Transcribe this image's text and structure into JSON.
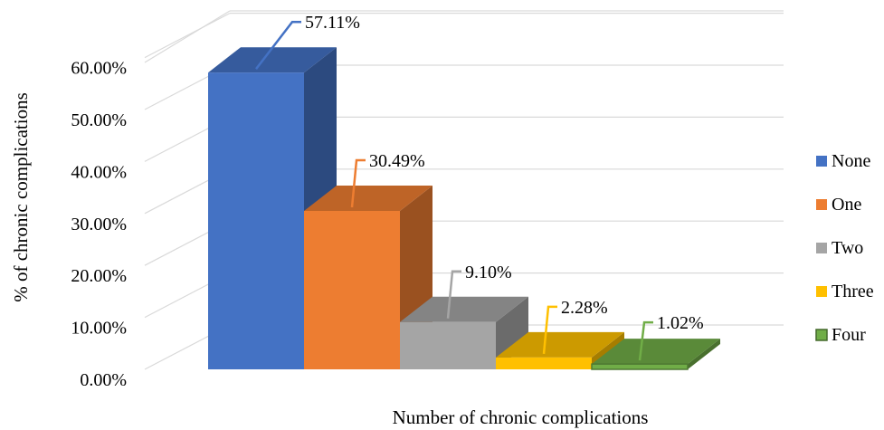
{
  "chart_data": {
    "type": "bar",
    "xlabel": "Number of  chronic complications",
    "ylabel": "% of chronic complications",
    "ylim": [
      0,
      60
    ],
    "y_ticks": [
      "0.00%",
      "10.00%",
      "20.00%",
      "30.00%",
      "40.00%",
      "50.00%",
      "60.00%"
    ],
    "grid": true,
    "legend_position": "right",
    "categories": [
      "None",
      "One",
      "Two",
      "Three",
      "Four"
    ],
    "values": [
      57.11,
      30.49,
      9.1,
      2.28,
      1.02
    ],
    "data_labels": [
      "57.11%",
      "30.49%",
      "9.10%",
      "2.28%",
      "1.02%"
    ],
    "colors": [
      "#4472C4",
      "#ED7D31",
      "#A5A5A5",
      "#FFC000",
      "#70AD47"
    ],
    "legend": [
      "None",
      "One",
      "Two",
      "Three",
      "Four"
    ]
  }
}
